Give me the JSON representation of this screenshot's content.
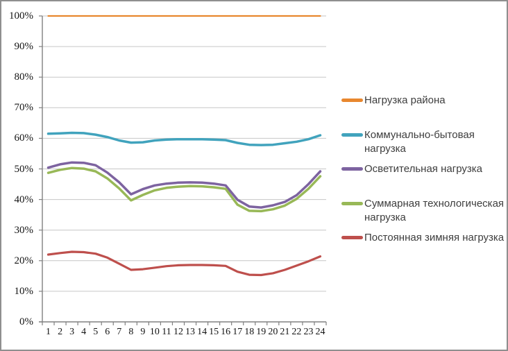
{
  "chart_data": {
    "type": "line",
    "title": "",
    "xlabel": "",
    "ylabel": "",
    "grid": true,
    "legend_position": "right",
    "x_axis": {
      "tick_labels": [
        "1",
        "2",
        "3",
        "4",
        "5",
        "6",
        "7",
        "8",
        "9",
        "10",
        "11",
        "12",
        "13",
        "14",
        "15",
        "16",
        "17",
        "18",
        "19",
        "20",
        "21",
        "22",
        "23",
        "24"
      ]
    },
    "y_axis": {
      "min": 0,
      "max": 100,
      "step": 10,
      "tick_labels": [
        "100%",
        "90%",
        "80%",
        "70%",
        "60%",
        "50%",
        "40%",
        "30%",
        "20%",
        "10%",
        "0%"
      ]
    },
    "style": {
      "grid_color": "#c6c6c6",
      "axis_color": "#808080",
      "background": "#ffffff",
      "frame_border": "#8f8f8f"
    },
    "series": [
      {
        "name": "Нагрузка района",
        "color": "#e8872e",
        "stroke_width": 2.2,
        "values": [
          100,
          100,
          100,
          100,
          100,
          100,
          100,
          100,
          100,
          100,
          100,
          100,
          100,
          100,
          100,
          100,
          100,
          100,
          100,
          100,
          100,
          100,
          100,
          100
        ]
      },
      {
        "name": "Коммунально-бытовая нагрузка",
        "color": "#41a3bd",
        "stroke_width": 3.5,
        "values": [
          61.5,
          61.6,
          61.8,
          61.7,
          61.2,
          60.4,
          59.3,
          58.6,
          58.7,
          59.3,
          59.6,
          59.7,
          59.7,
          59.7,
          59.6,
          59.4,
          58.5,
          57.9,
          57.8,
          57.9,
          58.4,
          58.9,
          59.7,
          61.0
        ]
      },
      {
        "name": "Осветительная нагрузка",
        "color": "#7d63a0",
        "stroke_width": 3.5,
        "values": [
          50.4,
          51.5,
          52.1,
          52.0,
          51.2,
          48.8,
          45.6,
          41.7,
          43.4,
          44.6,
          45.2,
          45.5,
          45.6,
          45.5,
          45.2,
          44.6,
          39.9,
          37.7,
          37.4,
          38.1,
          39.2,
          41.4,
          45.0,
          49.2
        ]
      },
      {
        "name": "Суммарная технологическая нагрузка",
        "color": "#98b857",
        "stroke_width": 3.5,
        "values": [
          48.7,
          49.7,
          50.3,
          50.1,
          49.2,
          46.9,
          43.6,
          39.7,
          41.5,
          43.0,
          43.8,
          44.2,
          44.4,
          44.3,
          44.0,
          43.5,
          38.3,
          36.3,
          36.2,
          36.8,
          38.0,
          40.2,
          43.5,
          47.6
        ]
      },
      {
        "name": "Постоянная зимняя нагрузка",
        "color": "#be4f4c",
        "stroke_width": 3.2,
        "values": [
          22.0,
          22.5,
          22.9,
          22.8,
          22.3,
          21.0,
          19.0,
          17.0,
          17.2,
          17.7,
          18.2,
          18.5,
          18.6,
          18.6,
          18.5,
          18.3,
          16.4,
          15.4,
          15.3,
          15.9,
          17.0,
          18.4,
          19.8,
          21.4
        ]
      }
    ]
  },
  "legend": {
    "items": [
      {
        "color": "#e8872e",
        "label_lines": [
          "Нагрузка района"
        ]
      },
      {
        "color": "#41a3bd",
        "label_lines": [
          "Коммунально-бытовая",
          "нагрузка"
        ]
      },
      {
        "color": "#7d63a0",
        "label_lines": [
          "Осветительная нагрузка"
        ]
      },
      {
        "color": "#98b857",
        "label_lines": [
          "Суммарная технологическая",
          "нагрузка"
        ]
      },
      {
        "color": "#be4f4c",
        "label_lines": [
          "Постоянная зимняя нагрузка"
        ]
      }
    ]
  }
}
